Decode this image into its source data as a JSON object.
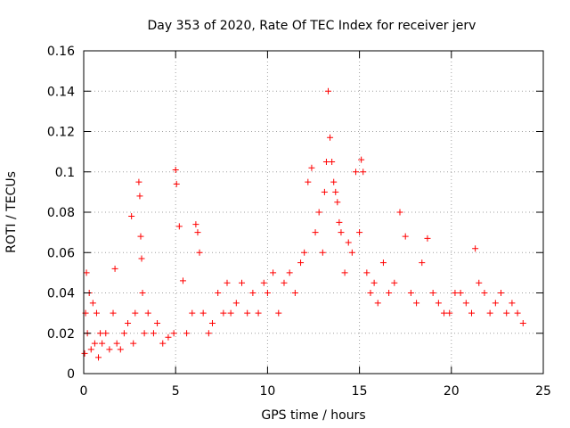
{
  "chart_data": {
    "type": "scatter",
    "title": "Day 353 of 2020, Rate Of TEC Index for receiver jerv",
    "xlabel": "GPS time / hours",
    "ylabel": "ROTI / TECUs",
    "xlim": [
      0,
      25
    ],
    "ylim": [
      0,
      0.16
    ],
    "x_ticks": [
      0,
      5,
      10,
      15,
      20,
      25
    ],
    "x_tick_labels": [
      "0",
      "5",
      "10",
      "15",
      "20",
      "25"
    ],
    "y_ticks": [
      0,
      0.02,
      0.04,
      0.06,
      0.08,
      0.1,
      0.12,
      0.14,
      0.16
    ],
    "y_tick_labels": [
      "0",
      "0.02",
      "0.04",
      "0.06",
      "0.08",
      "0.1",
      "0.12",
      "0.14",
      "0.16"
    ],
    "grid": true,
    "marker": "+",
    "color": "#ff0000",
    "series": [
      {
        "name": "ROTI",
        "x": [
          0.05,
          0.1,
          0.15,
          0.2,
          0.3,
          0.4,
          0.5,
          0.6,
          0.7,
          0.8,
          0.9,
          1.0,
          1.2,
          1.4,
          1.6,
          1.7,
          1.8,
          2.0,
          2.2,
          2.4,
          2.6,
          2.7,
          2.8,
          3.0,
          3.05,
          3.1,
          3.15,
          3.2,
          3.3,
          3.5,
          3.8,
          4.0,
          4.3,
          4.6,
          4.9,
          5.0,
          5.05,
          5.2,
          5.4,
          5.6,
          5.9,
          6.1,
          6.2,
          6.3,
          6.5,
          6.8,
          7.0,
          7.3,
          7.6,
          7.8,
          8.0,
          8.3,
          8.6,
          8.9,
          9.2,
          9.5,
          9.8,
          10.0,
          10.3,
          10.6,
          10.9,
          11.2,
          11.5,
          11.8,
          12.0,
          12.2,
          12.4,
          12.6,
          12.8,
          13.0,
          13.1,
          13.2,
          13.3,
          13.4,
          13.5,
          13.6,
          13.7,
          13.8,
          13.9,
          14.0,
          14.2,
          14.4,
          14.6,
          14.8,
          15.0,
          15.1,
          15.2,
          15.4,
          15.6,
          15.8,
          16.0,
          16.3,
          16.6,
          16.9,
          17.2,
          17.5,
          17.8,
          18.1,
          18.4,
          18.7,
          19.0,
          19.3,
          19.6,
          19.9,
          20.2,
          20.5,
          20.8,
          21.1,
          21.3,
          21.5,
          21.8,
          22.1,
          22.4,
          22.7,
          23.0,
          23.3,
          23.6,
          23.9
        ],
        "y": [
          0.01,
          0.03,
          0.05,
          0.02,
          0.04,
          0.012,
          0.035,
          0.015,
          0.03,
          0.008,
          0.02,
          0.015,
          0.02,
          0.012,
          0.03,
          0.052,
          0.015,
          0.012,
          0.02,
          0.025,
          0.078,
          0.015,
          0.03,
          0.095,
          0.088,
          0.068,
          0.057,
          0.04,
          0.02,
          0.03,
          0.02,
          0.025,
          0.015,
          0.018,
          0.02,
          0.101,
          0.094,
          0.073,
          0.046,
          0.02,
          0.03,
          0.074,
          0.07,
          0.06,
          0.03,
          0.02,
          0.025,
          0.04,
          0.03,
          0.045,
          0.03,
          0.035,
          0.045,
          0.03,
          0.04,
          0.03,
          0.045,
          0.04,
          0.05,
          0.03,
          0.045,
          0.05,
          0.04,
          0.055,
          0.06,
          0.095,
          0.102,
          0.07,
          0.08,
          0.06,
          0.09,
          0.105,
          0.14,
          0.117,
          0.105,
          0.095,
          0.09,
          0.085,
          0.075,
          0.07,
          0.05,
          0.065,
          0.06,
          0.1,
          0.07,
          0.106,
          0.1,
          0.05,
          0.04,
          0.045,
          0.035,
          0.055,
          0.04,
          0.045,
          0.08,
          0.068,
          0.04,
          0.035,
          0.055,
          0.067,
          0.04,
          0.035,
          0.03,
          0.03,
          0.04,
          0.04,
          0.035,
          0.03,
          0.062,
          0.045,
          0.04,
          0.03,
          0.035,
          0.04,
          0.03,
          0.035,
          0.03,
          0.025
        ]
      }
    ]
  }
}
